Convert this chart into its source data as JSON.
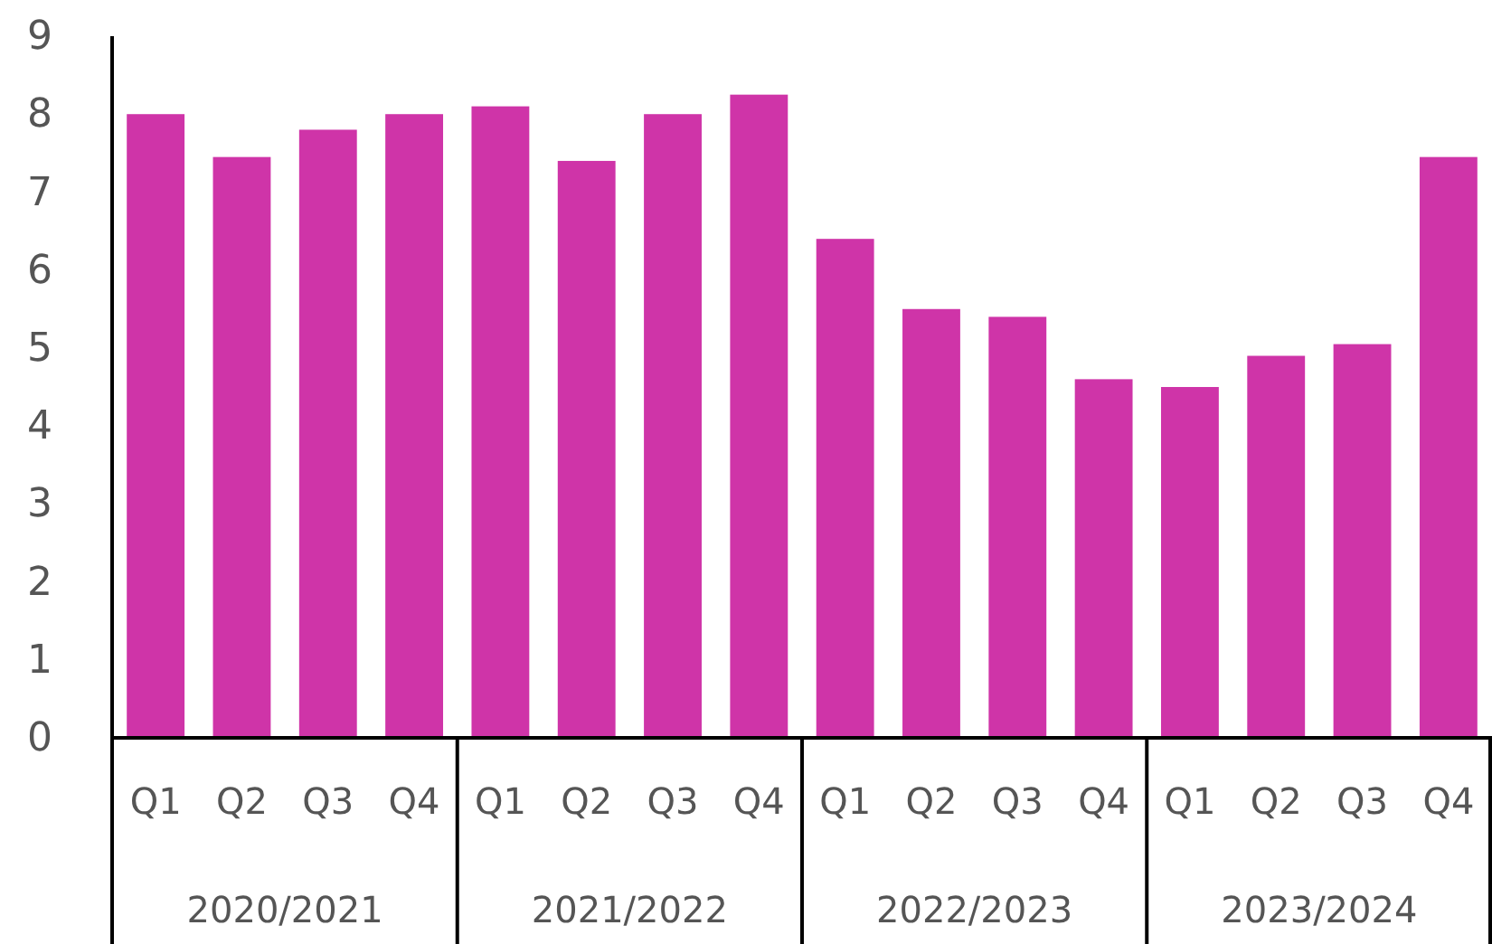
{
  "chart_data": {
    "type": "bar",
    "categories": [
      "Q1",
      "Q2",
      "Q3",
      "Q4",
      "Q1",
      "Q2",
      "Q3",
      "Q4",
      "Q1",
      "Q2",
      "Q3",
      "Q4",
      "Q1",
      "Q2",
      "Q3",
      "Q4"
    ],
    "values": [
      8.0,
      7.45,
      7.8,
      8.0,
      8.1,
      7.4,
      8.0,
      8.25,
      6.4,
      5.5,
      5.4,
      4.6,
      4.5,
      4.9,
      5.05,
      7.45
    ],
    "color": "#cf34a8",
    "ylim": [
      0,
      9
    ],
    "yticks": [
      0,
      1,
      2,
      3,
      4,
      5,
      6,
      7,
      8,
      9
    ],
    "grid": false,
    "annotations": [
      "2020/2021",
      "2021/2022",
      "2022/2023",
      "2023/2024"
    ]
  }
}
